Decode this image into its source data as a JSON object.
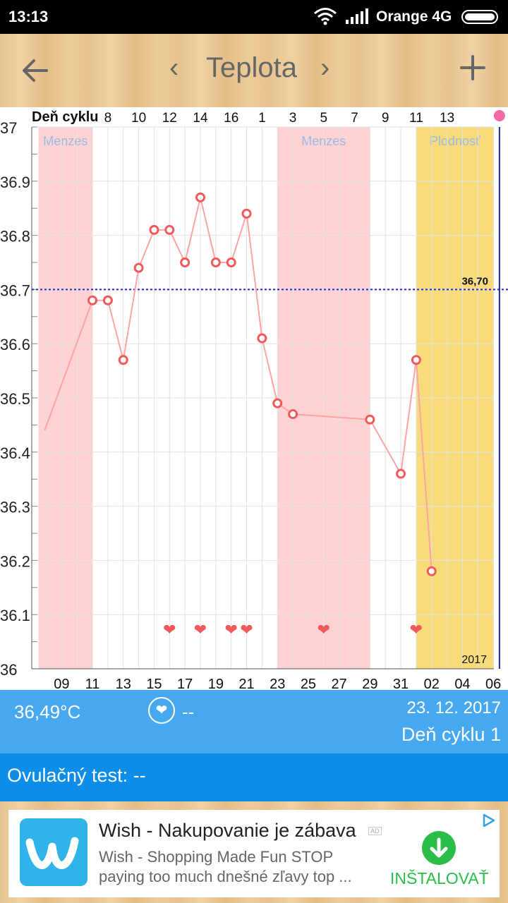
{
  "status": {
    "time": "13:13",
    "carrier": "Orange 4G"
  },
  "toolbar": {
    "prev": "‹",
    "title": "Teplota",
    "next": "›"
  },
  "chart_data": {
    "type": "line",
    "top_label": "Deň cyklu",
    "cycle_day_ticks": [
      "8",
      "10",
      "12",
      "14",
      "16",
      "1",
      "3",
      "5",
      "7",
      "9",
      "11",
      "13"
    ],
    "date_ticks": [
      "09",
      "11",
      "13",
      "15",
      "17",
      "19",
      "21",
      "23",
      "25",
      "27",
      "29",
      "31",
      "02",
      "04",
      "06"
    ],
    "y_ticks": [
      "37",
      "36.9",
      "36.8",
      "36.7",
      "36.6",
      "36.5",
      "36.4",
      "36.3",
      "36.2",
      "36.1",
      "36"
    ],
    "ylim": [
      36.0,
      37.0
    ],
    "series": [
      {
        "x_index": [
          -0.1,
          3,
          4,
          5,
          6,
          7,
          8,
          9,
          10,
          11,
          12,
          13,
          14,
          15,
          16,
          21,
          23,
          24,
          25
        ],
        "values": [
          36.44,
          36.68,
          36.68,
          36.57,
          36.74,
          36.81,
          36.81,
          36.75,
          36.87,
          36.75,
          36.75,
          36.84,
          36.61,
          36.49,
          36.47,
          36.46,
          36.36,
          36.57,
          36.18
        ],
        "markers_from": 1
      }
    ],
    "threshold": {
      "value": 36.7,
      "label": "36,70"
    },
    "bands": [
      {
        "label": "Menzes",
        "from_index": -0.5,
        "to_index": 3,
        "color": "#ffd3d3"
      },
      {
        "label": "Menzes",
        "from_index": 15,
        "to_index": 21,
        "color": "#ffd3d3"
      },
      {
        "label": "Plodnosť",
        "from_index": 24,
        "to_index": 30,
        "color": "#f8dc7c"
      }
    ],
    "hearts_index": [
      8,
      10,
      12,
      13,
      18,
      24
    ],
    "today_index": 29.4,
    "year_label": "2017",
    "grid": true
  },
  "info": {
    "temperature": "36,49°C",
    "heart_value": "--",
    "date": "23. 12. 2017",
    "cycle_day": "Deň cyklu 1"
  },
  "ovulation": {
    "label": "Ovulačný test: --"
  },
  "ad": {
    "title": "Wish - Nakupovanie je zábava",
    "tag": "AD",
    "desc_line1": "Wish - Shopping Made Fun STOP",
    "desc_line2": "paying too much dnešné zľavy top ...",
    "install": "INŠTALOVAŤ"
  },
  "colors": {
    "line": "#ffa3a3",
    "marker": "#f05a5a",
    "menzes_band": "#ffd3d3",
    "fertile_band": "#f8dc7c",
    "threshold": "#2222dd",
    "info_bar": "#46a9f0",
    "ovulation_bar": "#0b8de8",
    "install_green": "#2bbd4a"
  }
}
